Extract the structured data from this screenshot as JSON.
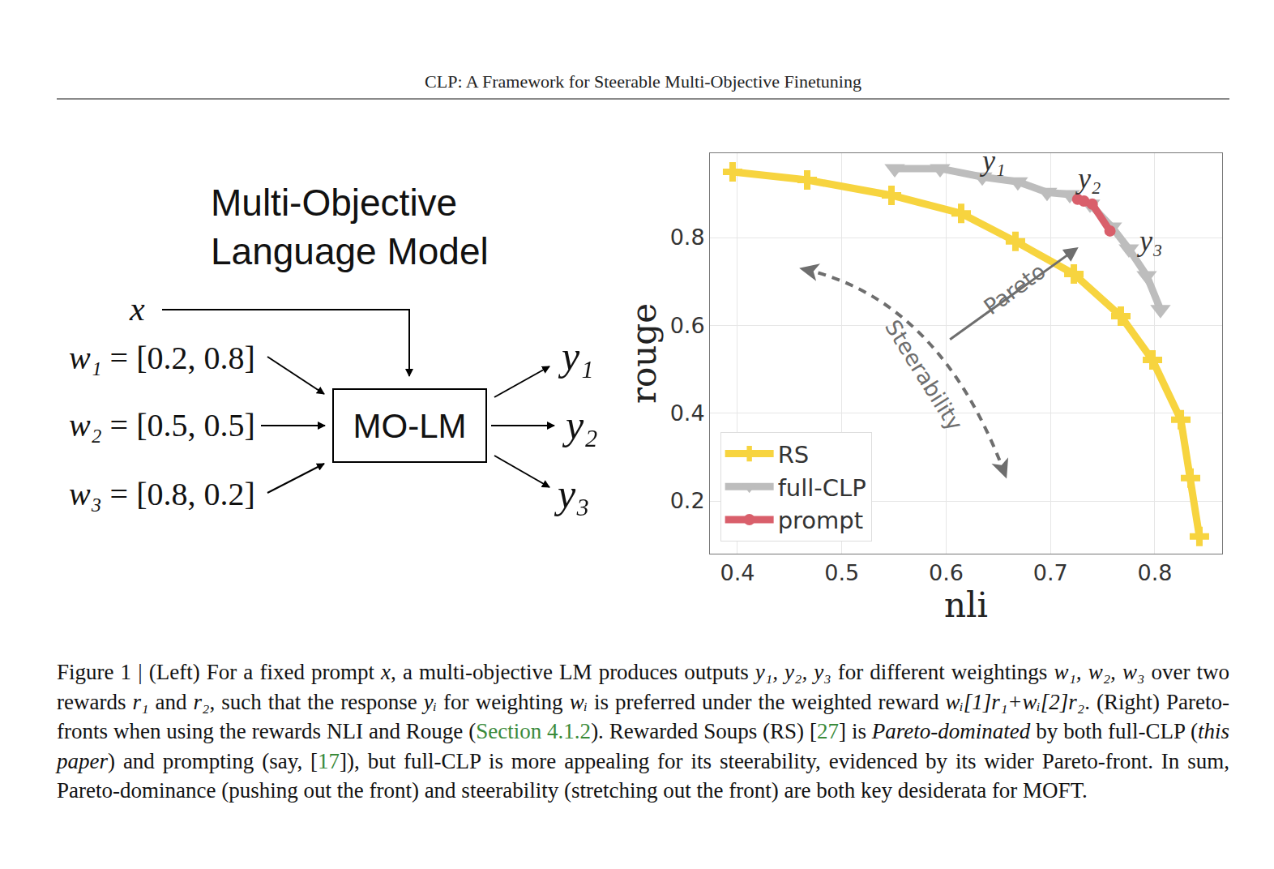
{
  "header": "CLP: A Framework for Steerable Multi-Objective Finetuning",
  "diagram": {
    "title": [
      "Multi-Objective",
      "Language Model"
    ],
    "input": "x",
    "weights": [
      {
        "symbol": "w₁",
        "value": "= [0.2, 0.8]"
      },
      {
        "symbol": "w₂",
        "value": "= [0.5, 0.5]"
      },
      {
        "symbol": "w₃",
        "value": "= [0.8, 0.2]"
      }
    ],
    "model": "MO-LM",
    "outputs": [
      "y₁",
      "y₂",
      "y₃"
    ]
  },
  "chart_data": {
    "type": "line",
    "x_label": "nli",
    "y_label": "rouge",
    "xlim": [
      0.3736,
      0.8645
    ],
    "ylim": [
      0.08,
      0.992
    ],
    "xticks": [
      0.4,
      0.5,
      0.6,
      0.7,
      0.8
    ],
    "yticks": [
      0.2,
      0.4,
      0.6,
      0.8
    ],
    "grid": true,
    "legend": "lower left",
    "series": [
      {
        "name": "RS",
        "color": "#f7d43f",
        "marker": "cross",
        "line_style": "solid",
        "x": [
          0.3953,
          0.4668,
          0.5476,
          0.6144,
          0.6664,
          0.7224,
          0.7674,
          0.7977,
          0.8249,
          0.8342,
          0.8427
        ],
        "values": [
          0.9495,
          0.931,
          0.896,
          0.855,
          0.791,
          0.717,
          0.621,
          0.521,
          0.385,
          0.252,
          0.119
        ]
      },
      {
        "name": "full-CLP",
        "color": "#bdbdbd",
        "marker": "triangle-down",
        "line_style": "solid",
        "x": [
          0.5507,
          0.5942,
          0.6346,
          0.6687,
          0.6967,
          0.7185,
          0.7379,
          0.7588,
          0.7751,
          0.7922,
          0.8054
        ],
        "values": [
          0.957,
          0.957,
          0.938,
          0.927,
          0.903,
          0.898,
          0.876,
          0.824,
          0.774,
          0.713,
          0.636
        ]
      },
      {
        "name": "prompt",
        "color": "#d95f6b",
        "marker": "circle",
        "line_style": "solid",
        "x": [
          0.726,
          0.732,
          0.74,
          0.757
        ],
        "values": [
          0.887,
          0.883,
          0.876,
          0.815
        ]
      }
    ],
    "point_labels": [
      {
        "text": "y₁",
        "x": 0.6447,
        "y": 0.975
      },
      {
        "text": "y₂",
        "x": 0.736,
        "y": 0.935
      },
      {
        "text": "y₃",
        "x": 0.795,
        "y": 0.793
      }
    ],
    "annotations": [
      "Pareto",
      "Steerability"
    ]
  },
  "caption": [
    {
      "text": "Figure 1 | (Left) For a fixed prompt "
    },
    {
      "text": "x",
      "style": "italic"
    },
    {
      "text": ", a multi-objective LM produces outputs "
    },
    {
      "text": "y₁, y₂, y₃",
      "style": "italic"
    },
    {
      "text": " for different weightings "
    },
    {
      "text": "w₁, w₂, w₃",
      "style": "italic"
    },
    {
      "text": " over two rewards "
    },
    {
      "text": "r₁",
      "style": "italic"
    },
    {
      "text": " and "
    },
    {
      "text": "r₂",
      "style": "italic"
    },
    {
      "text": ", such that the response "
    },
    {
      "text": "yᵢ",
      "style": "italic"
    },
    {
      "text": " for weighting "
    },
    {
      "text": "wᵢ",
      "style": "italic"
    },
    {
      "text": " is preferred under the weighted reward "
    },
    {
      "text": "wᵢ[1]r₁+wᵢ[2]r₂",
      "style": "italic"
    },
    {
      "text": ". (Right) Pareto-fronts when using the rewards NLI and Rouge ("
    },
    {
      "text": "Section 4.1.2",
      "style": "ref"
    },
    {
      "text": "). Rewarded Soups (RS) ["
    },
    {
      "text": "27",
      "style": "ref"
    },
    {
      "text": "] is "
    },
    {
      "text": "Pareto-dominated",
      "style": "italic"
    },
    {
      "text": " by both full-CLP ("
    },
    {
      "text": "this paper",
      "style": "italic"
    },
    {
      "text": ") and prompting (say, ["
    },
    {
      "text": "17",
      "style": "ref"
    },
    {
      "text": "]), but full-CLP is more appealing for its steerability, evidenced by its wider Pareto-front. In sum, Pareto-dominance (pushing out the front) and steerability (stretching out the front) are both key desiderata for MOFT."
    }
  ]
}
